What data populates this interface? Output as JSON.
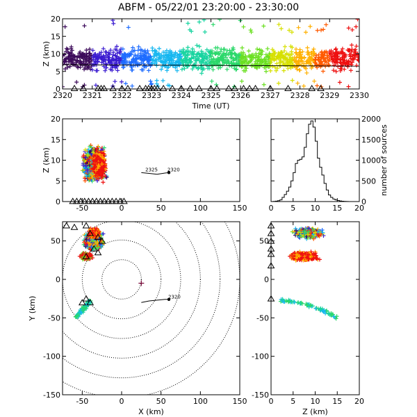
{
  "title": "ABFM - 05/22/01 23:20:00 - 23:30:00",
  "chart_data": [
    {
      "id": "time_height",
      "type": "scatter",
      "xlabel": "Time (UT)",
      "ylabel": "Z (km)",
      "x_ticks": [
        "2320",
        "2321",
        "2322",
        "2323",
        "2324",
        "2325",
        "2326",
        "2327",
        "2328",
        "2329",
        "2330"
      ],
      "y_ticks": [
        "0",
        "5",
        "10",
        "15",
        "20"
      ],
      "xlim": [
        2320,
        2330
      ],
      "ylim": [
        0,
        20
      ],
      "color_scale": "time, purple (23:20) to red (23:30)",
      "reference_line_z_km": 6.5,
      "triangle_marker_times": [
        2320.4,
        2320.7,
        2321.2,
        2321.3,
        2321.4,
        2321.7,
        2322.0,
        2322.2,
        2322.6,
        2322.8,
        2322.9,
        2323.0,
        2323.1,
        2323.2,
        2323.4,
        2323.7,
        2324.0,
        2324.3,
        2324.6,
        2325.0,
        2325.2,
        2325.6,
        2325.8,
        2326.1,
        2326.3,
        2326.5,
        2327.0,
        2327.6,
        2328.4,
        2328.7
      ],
      "density_bands": [
        {
          "t0": 2320.0,
          "t1": 2321.0,
          "zmin": 4.5,
          "zmax": 14,
          "color": "#3c0a5a"
        },
        {
          "t0": 2321.0,
          "t1": 2322.0,
          "zmin": 4.0,
          "zmax": 14,
          "color": "#3a1bd0"
        },
        {
          "t0": 2322.0,
          "t1": 2323.0,
          "zmin": 3.5,
          "zmax": 15,
          "color": "#1e6cff"
        },
        {
          "t0": 2323.0,
          "t1": 2324.0,
          "zmin": 3.0,
          "zmax": 15,
          "color": "#16b7f0"
        },
        {
          "t0": 2324.0,
          "t1": 2325.0,
          "zmin": 3.0,
          "zmax": 15,
          "color": "#19d4a0"
        },
        {
          "t0": 2325.0,
          "t1": 2326.0,
          "zmin": 3.0,
          "zmax": 16,
          "color": "#2bd86a"
        },
        {
          "t0": 2326.0,
          "t1": 2327.0,
          "zmin": 3.0,
          "zmax": 16,
          "color": "#6be022"
        },
        {
          "t0": 2327.0,
          "t1": 2327.8,
          "zmin": 3.0,
          "zmax": 16,
          "color": "#d6e000"
        },
        {
          "t0": 2327.8,
          "t1": 2328.5,
          "zmin": 3.5,
          "zmax": 15,
          "color": "#ffb000"
        },
        {
          "t0": 2328.5,
          "t1": 2329.0,
          "zmin": 4.0,
          "zmax": 13,
          "color": "#ff5a00"
        },
        {
          "t0": 2329.0,
          "t1": 2330.0,
          "zmin": 4.0,
          "zmax": 13,
          "color": "#ee1010"
        }
      ]
    },
    {
      "id": "x_height",
      "type": "scatter",
      "xlabel": "",
      "ylabel": "Z (km)",
      "x_ticks": [
        "-50",
        "0",
        "50",
        "100",
        "150"
      ],
      "y_ticks": [
        "0",
        "5",
        "10",
        "15",
        "20"
      ],
      "xlim": [
        -75,
        150
      ],
      "ylim": [
        0,
        20
      ],
      "annotations": [
        "2325",
        "2320"
      ],
      "track": [
        [
          25,
          7
        ],
        [
          35,
          6.8
        ],
        [
          45,
          6.6
        ],
        [
          55,
          6.9
        ],
        [
          60,
          7.0
        ]
      ]
    },
    {
      "id": "altitude_histogram",
      "type": "bar",
      "ylabel": "number of sources",
      "x_ticks": [
        "0",
        "5",
        "10",
        "15",
        "20"
      ],
      "y_ticks": [
        "0",
        "500",
        "1000",
        "1500",
        "2000"
      ],
      "xlim": [
        0,
        20
      ],
      "ylim": [
        0,
        2000
      ],
      "bin_width_km": 0.5,
      "bin_starts": [
        0,
        0.5,
        1,
        1.5,
        2,
        2.5,
        3,
        3.5,
        4,
        4.5,
        5,
        5.5,
        6,
        6.5,
        7,
        7.5,
        8,
        8.5,
        9,
        9.5,
        10,
        10.5,
        11,
        11.5,
        12,
        12.5,
        13,
        13.5,
        14,
        14.5,
        15,
        15.5,
        16,
        16.5,
        17,
        17.5,
        18
      ],
      "counts": [
        0,
        5,
        10,
        20,
        40,
        100,
        170,
        250,
        350,
        500,
        700,
        920,
        1000,
        1020,
        1080,
        1310,
        1640,
        1870,
        1950,
        1800,
        1460,
        1050,
        830,
        640,
        440,
        280,
        160,
        100,
        60,
        40,
        25,
        15,
        8,
        5,
        2,
        1,
        0
      ]
    },
    {
      "id": "plan_view",
      "type": "scatter",
      "xlabel": "X (km)",
      "ylabel": "Y (km)",
      "x_ticks": [
        "-50",
        "0",
        "50",
        "100",
        "150"
      ],
      "y_ticks": [
        "-150",
        "-100",
        "-50",
        "0",
        "50"
      ],
      "xlim": [
        -75,
        150
      ],
      "ylim": [
        -150,
        75
      ],
      "range_rings_km": [
        25,
        50,
        75,
        100,
        125,
        150
      ],
      "annotations": [
        "2320"
      ],
      "track": [
        [
          25,
          -30
        ],
        [
          35,
          -28
        ],
        [
          45,
          -27
        ],
        [
          55,
          -26
        ],
        [
          60,
          -26
        ]
      ],
      "station_triangles": [
        [
          -70,
          70
        ],
        [
          -60,
          68
        ],
        [
          -45,
          70
        ],
        [
          -40,
          60
        ],
        [
          -30,
          55
        ],
        [
          -25,
          50
        ],
        [
          -45,
          30
        ],
        [
          -35,
          40
        ],
        [
          -30,
          35
        ],
        [
          -45,
          -25
        ],
        [
          -50,
          -30
        ],
        [
          -40,
          -30
        ]
      ]
    },
    {
      "id": "z_y",
      "type": "scatter",
      "xlabel": "Z (km)",
      "ylabel": "",
      "x_ticks": [
        "0",
        "5",
        "10",
        "15",
        "20"
      ],
      "y_ticks": [
        "-150",
        "-100",
        "-50",
        "0",
        "50"
      ],
      "xlim": [
        0,
        20
      ],
      "ylim": [
        -150,
        75
      ],
      "station_triangles": [
        [
          0,
          70
        ],
        [
          0,
          60
        ],
        [
          0,
          50
        ],
        [
          0,
          40
        ],
        [
          0,
          33
        ],
        [
          0,
          18
        ],
        [
          0,
          -25
        ]
      ]
    }
  ]
}
